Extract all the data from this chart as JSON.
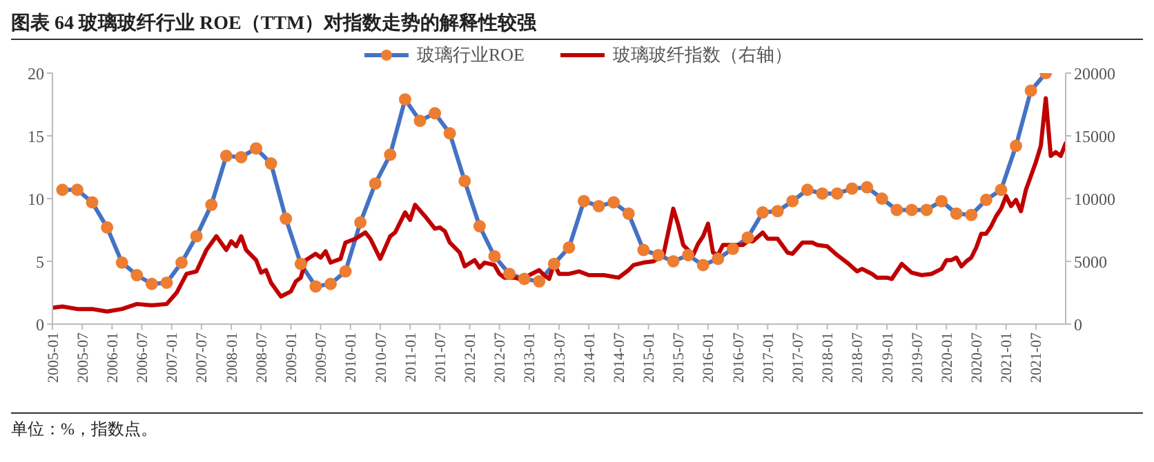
{
  "chart_data": {
    "type": "line",
    "title": "图表 64 玻璃玻纤行业 ROE（TTM）对指数走势的解释性较强",
    "xlim": [
      "2005-01",
      "2022-01"
    ],
    "xticks": [
      "2005-01",
      "2005-07",
      "2006-01",
      "2006-07",
      "2007-01",
      "2007-07",
      "2008-01",
      "2008-07",
      "2009-01",
      "2009-07",
      "2010-01",
      "2010-07",
      "2011-01",
      "2011-07",
      "2012-01",
      "2012-07",
      "2013-01",
      "2013-07",
      "2014-01",
      "2014-07",
      "2015-01",
      "2015-07",
      "2016-01",
      "2016-07",
      "2017-01",
      "2017-07",
      "2018-01",
      "2018-07",
      "2019-01",
      "2019-07",
      "2020-01",
      "2020-07",
      "2021-01",
      "2021-07"
    ],
    "ylim": [
      0,
      20
    ],
    "yticks": [
      0,
      5,
      10,
      15,
      20
    ],
    "y2lim": [
      0,
      20000
    ],
    "y2ticks": [
      0,
      5000,
      10000,
      15000,
      20000
    ],
    "grid": false,
    "legend": "top",
    "line_style": "solid",
    "series": [
      {
        "name": "玻璃行业ROE",
        "color": "#4472c4",
        "marker": "circle",
        "colors": [
          "#ed7d31",
          "#ed7d31",
          "#ed7d31",
          "#ed7d31",
          "#ed7d31",
          "#ed7d31",
          "#ed7d31",
          "#ed7d31",
          "#ed7d31",
          "#ed7d31",
          "#ed7d31",
          "#ed7d31",
          "#ed7d31",
          "#ed7d31",
          "#ed7d31",
          "#ed7d31",
          "#ed7d31",
          "#ed7d31",
          "#ed7d31",
          "#ed7d31",
          "#ed7d31",
          "#ed7d31",
          "#ed7d31",
          "#ed7d31",
          "#ed7d31",
          "#ed7d31",
          "#ed7d31",
          "#ed7d31",
          "#ed7d31",
          "#ed7d31",
          "#ed7d31",
          "#ed7d31",
          "#ed7d31",
          "#ed7d31",
          "#ed7d31",
          "#ed7d31",
          "#ed7d31",
          "#ed7d31",
          "#ed7d31",
          "#ed7d31",
          "#ed7d31",
          "#ed7d31",
          "#ed7d31",
          "#ed7d31",
          "#ed7d31",
          "#ed7d31",
          "#ed7d31",
          "#ed7d31",
          "#ed7d31",
          "#ed7d31",
          "#ed7d31",
          "#ed7d31",
          "#ed7d31",
          "#ed7d31",
          "#ed7d31",
          "#ed7d31",
          "#ed7d31",
          "#ed7d31",
          "#ed7d31",
          "#ed7d31",
          "#ed7d31",
          "#ed7d31",
          "#ed7d31",
          "#ed7d31",
          "#ed7d31",
          "#ed7d31",
          "#ed7d31"
        ],
        "x": [
          "2005-03",
          "2005-06",
          "2005-09",
          "2005-12",
          "2006-03",
          "2006-06",
          "2006-09",
          "2006-12",
          "2007-03",
          "2007-06",
          "2007-09",
          "2007-12",
          "2008-03",
          "2008-06",
          "2008-09",
          "2008-12",
          "2009-03",
          "2009-06",
          "2009-09",
          "2009-12",
          "2010-03",
          "2010-06",
          "2010-09",
          "2010-12",
          "2011-03",
          "2011-06",
          "2011-09",
          "2011-12",
          "2012-03",
          "2012-06",
          "2012-09",
          "2012-12",
          "2013-03",
          "2013-06",
          "2013-09",
          "2013-12",
          "2014-03",
          "2014-06",
          "2014-09",
          "2014-12",
          "2015-03",
          "2015-06",
          "2015-09",
          "2015-12",
          "2016-03",
          "2016-06",
          "2016-09",
          "2016-12",
          "2017-03",
          "2017-06",
          "2017-09",
          "2017-12",
          "2018-03",
          "2018-06",
          "2018-09",
          "2018-12",
          "2019-03",
          "2019-06",
          "2019-09",
          "2019-12",
          "2020-03",
          "2020-06",
          "2020-09",
          "2020-12",
          "2021-03",
          "2021-06",
          "2021-09"
        ],
        "values": [
          10.7,
          10.7,
          9.7,
          7.7,
          4.9,
          3.9,
          3.2,
          3.3,
          4.9,
          7.0,
          9.5,
          13.4,
          13.3,
          14.0,
          12.8,
          8.4,
          4.8,
          3.0,
          3.2,
          4.2,
          8.1,
          11.2,
          13.5,
          17.9,
          16.2,
          16.8,
          15.2,
          11.4,
          7.8,
          5.4,
          4.0,
          3.6,
          3.4,
          4.8,
          6.1,
          9.8,
          9.4,
          9.7,
          8.8,
          5.9,
          5.5,
          5.0,
          5.5,
          4.7,
          5.2,
          6.0,
          6.9,
          8.9,
          9.0,
          9.8,
          10.7,
          10.4,
          10.4,
          10.8,
          10.9,
          10.0,
          9.1,
          9.1,
          9.1,
          9.8,
          8.8,
          8.7,
          9.9,
          10.7,
          14.2,
          18.6,
          20.0
        ]
      },
      {
        "name": "玻璃玻纤指数（右轴）",
        "color": "#c00000",
        "marker": "none",
        "axis": "y2",
        "x": [
          "2005-01",
          "2005-03",
          "2005-06",
          "2005-09",
          "2005-12",
          "2006-03",
          "2006-06",
          "2006-09",
          "2006-12",
          "2007-02",
          "2007-04",
          "2007-06",
          "2007-08",
          "2007-10",
          "2007-12",
          "2008-01",
          "2008-02",
          "2008-03",
          "2008-04",
          "2008-06",
          "2008-07",
          "2008-08",
          "2008-09",
          "2008-11",
          "2009-01",
          "2009-02",
          "2009-03",
          "2009-04",
          "2009-06",
          "2009-07",
          "2009-08",
          "2009-09",
          "2009-11",
          "2009-12",
          "2010-02",
          "2010-04",
          "2010-05",
          "2010-07",
          "2010-09",
          "2010-10",
          "2010-12",
          "2011-01",
          "2011-02",
          "2011-04",
          "2011-06",
          "2011-07",
          "2011-08",
          "2011-09",
          "2011-11",
          "2011-12",
          "2012-02",
          "2012-03",
          "2012-04",
          "2012-06",
          "2012-07",
          "2012-08",
          "2012-10",
          "2012-12",
          "2013-01",
          "2013-03",
          "2013-04",
          "2013-05",
          "2013-06",
          "2013-07",
          "2013-09",
          "2013-11",
          "2014-01",
          "2014-04",
          "2014-07",
          "2014-09",
          "2014-10",
          "2014-12",
          "2015-02",
          "2015-04",
          "2015-06",
          "2015-07",
          "2015-08",
          "2015-09",
          "2015-10",
          "2015-11",
          "2015-12",
          "2016-01",
          "2016-02",
          "2016-03",
          "2016-04",
          "2016-06",
          "2016-08",
          "2016-09",
          "2016-10",
          "2016-12",
          "2017-01",
          "2017-03",
          "2017-05",
          "2017-06",
          "2017-08",
          "2017-10",
          "2017-11",
          "2018-01",
          "2018-03",
          "2018-05",
          "2018-07",
          "2018-08",
          "2018-10",
          "2018-11",
          "2019-01",
          "2019-02",
          "2019-04",
          "2019-06",
          "2019-08",
          "2019-10",
          "2019-12",
          "2020-01",
          "2020-02",
          "2020-03",
          "2020-04",
          "2020-05",
          "2020-06",
          "2020-07",
          "2020-08",
          "2020-09",
          "2020-10",
          "2020-11",
          "2020-12",
          "2021-01",
          "2021-02",
          "2021-03",
          "2021-04",
          "2021-05",
          "2021-07",
          "2021-08",
          "2021-09",
          "2021-10",
          "2021-11",
          "2021-12",
          "2022-01"
        ],
        "values": [
          1300,
          1400,
          1200,
          1200,
          1000,
          1200,
          1600,
          1500,
          1600,
          2500,
          4000,
          4200,
          5900,
          7000,
          5900,
          6600,
          6200,
          7000,
          5900,
          5100,
          4100,
          4300,
          3300,
          2200,
          2600,
          3400,
          3700,
          5100,
          5600,
          5300,
          5800,
          4900,
          5200,
          6500,
          6800,
          7300,
          6800,
          5200,
          7000,
          7300,
          8900,
          8300,
          9500,
          8600,
          7600,
          7700,
          7400,
          6500,
          5700,
          4600,
          5100,
          4500,
          4900,
          4700,
          4000,
          3700,
          3700,
          3500,
          3900,
          4300,
          3900,
          3600,
          4800,
          4000,
          4000,
          4200,
          3900,
          3900,
          3700,
          4300,
          4700,
          4900,
          5000,
          5500,
          9200,
          7900,
          6300,
          5900,
          5500,
          6400,
          7000,
          8000,
          5700,
          5500,
          6300,
          6300,
          6300,
          6600,
          6600,
          7300,
          6800,
          6800,
          5700,
          5600,
          6500,
          6500,
          6300,
          6200,
          5500,
          4900,
          4200,
          4400,
          4000,
          3700,
          3700,
          3600,
          4800,
          4100,
          3900,
          4000,
          4400,
          5100,
          5100,
          5300,
          4600,
          5000,
          5300,
          6100,
          7200,
          7200,
          7800,
          8600,
          9200,
          10200,
          9400,
          9900,
          9000,
          10700,
          12900,
          14200,
          18000,
          13400,
          13700,
          13400,
          14400
        ]
      }
    ],
    "annotations": [
      "单位：%，指数点。"
    ]
  }
}
